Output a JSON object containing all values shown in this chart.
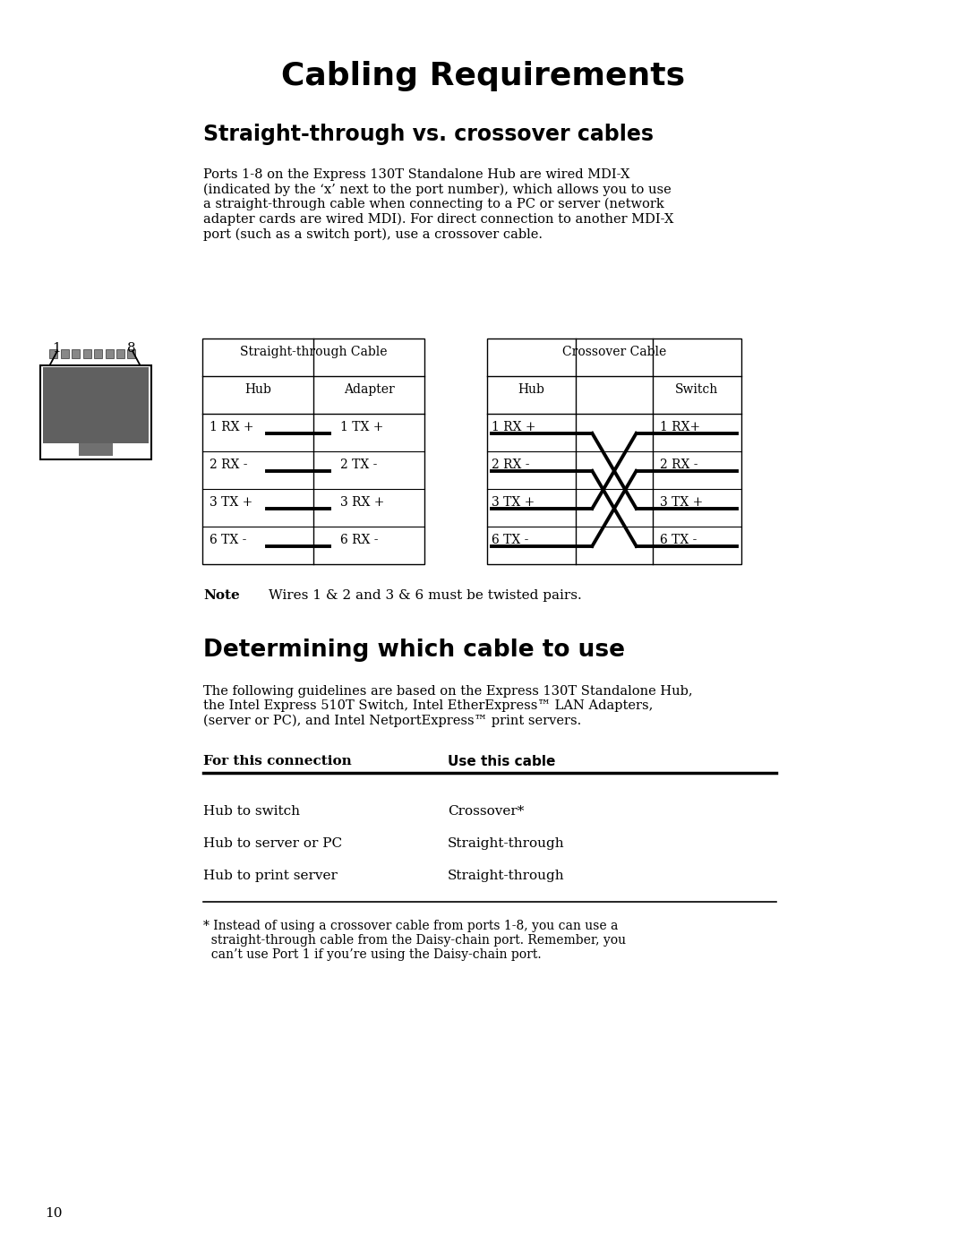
{
  "bg_color": "#ffffff",
  "title": "Cabling Requirements",
  "section1_title": "Straight-through vs. crossover cables",
  "section1_body": "Ports 1-8 on the Express 130T Standalone Hub are wired MDI-X\n(indicated by the ‘x’ next to the port number), which allows you to use\na straight-through cable when connecting to a PC or server (network\nadapter cards are wired MDI). For direct connection to another MDI-X\nport (such as a switch port), use a crossover cable.",
  "straight_title": "Straight-through Cable",
  "straight_left_header": "Hub",
  "straight_right_header": "Adapter",
  "straight_rows": [
    [
      "1 RX +",
      "1 TX +"
    ],
    [
      "2 RX -",
      "2 TX -"
    ],
    [
      "3 TX +",
      "3 RX +"
    ],
    [
      "6 TX -",
      "6 RX -"
    ]
  ],
  "crossover_title": "Crossover Cable",
  "crossover_left_header": "Hub",
  "crossover_right_header": "Switch",
  "crossover_rows": [
    [
      "1 RX +",
      "1 RX+"
    ],
    [
      "2 RX -",
      "2 RX -"
    ],
    [
      "3 TX +",
      "3 TX +"
    ],
    [
      "6 TX -",
      "6 TX -"
    ]
  ],
  "note_label": "Note",
  "note_text": "Wires 1 & 2 and 3 & 6 must be twisted pairs.",
  "section2_title": "Determining which cable to use",
  "section2_body": "The following guidelines are based on the Express 130T Standalone Hub,\nthe Intel Express 510T Switch, Intel EtherExpress™ LAN Adapters,\n(server or PC), and Intel NetportExpress™ print servers.",
  "table2_col1_header": "For this connection",
  "table2_col2_header": "Use this cable",
  "table2_rows": [
    [
      "Hub to switch",
      "Crossover*"
    ],
    [
      "Hub to server or PC",
      "Straight-through"
    ],
    [
      "Hub to print server",
      "Straight-through"
    ]
  ],
  "footnote": "* Instead of using a crossover cable from ports 1-8, you can use a\n  straight-through cable from the Daisy-chain port. Remember, you\n  can’t use Port 1 if you’re using the Daisy-chain port.",
  "page_number": "10"
}
